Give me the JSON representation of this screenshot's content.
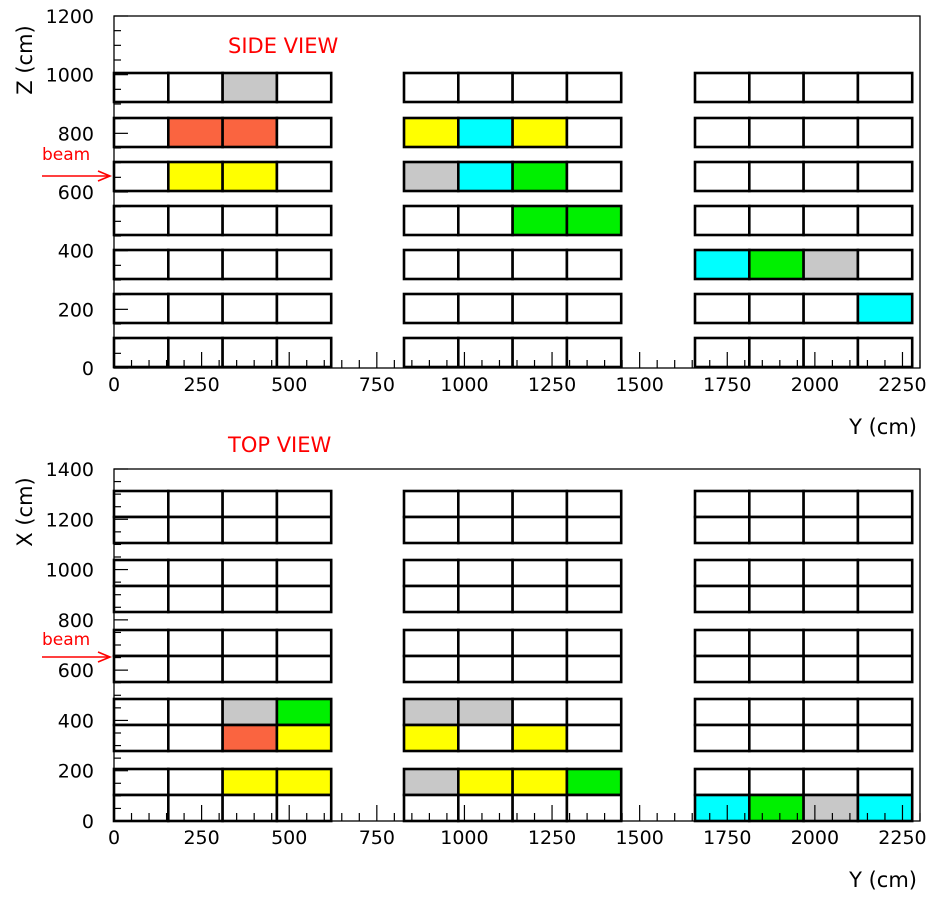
{
  "colors": {
    "empty": "#ffffff",
    "gray": "#c8c8c8",
    "orange": "#fa6440",
    "yellow": "#ffff00",
    "cyan": "#00ffff",
    "green": "#00f000",
    "annotation": "#ff0000",
    "line": "#000000"
  },
  "color_legend": {
    "G": "gray",
    "O": "orange",
    "Y": "yellow",
    "C": "cyan",
    "N": "green",
    ".": "empty"
  },
  "side_view": {
    "title": "SIDE VIEW",
    "beam_label": "beam",
    "x_axis": {
      "label": "Y (cm)",
      "range": [
        0,
        2300
      ],
      "ticks": [
        0,
        250,
        500,
        750,
        1000,
        1250,
        1500,
        1750,
        2000,
        2250
      ],
      "tick_labels": [
        "0",
        "250",
        "500",
        "750",
        "1000",
        "1250",
        "1500",
        "1750",
        "2000",
        "2250"
      ]
    },
    "y_axis": {
      "label": "Z (cm)",
      "range": [
        0,
        1200
      ],
      "ticks": [
        0,
        200,
        400,
        600,
        800,
        1000,
        1200
      ],
      "tick_labels": [
        "0",
        "200",
        "400",
        "600",
        "800",
        "1000",
        "1200"
      ]
    },
    "beam_level": 660,
    "rows_top_to_bottom": [
      [
        "..G.",
        "....",
        "...."
      ],
      [
        ".OO.",
        "YCY.",
        "...."
      ],
      [
        ".YY.",
        "GCN.",
        "...."
      ],
      [
        "....",
        "..NN",
        "...."
      ],
      [
        "....",
        "....",
        "CNG."
      ],
      [
        "....",
        "....",
        "...C"
      ],
      [
        "....",
        "....",
        "...."
      ]
    ]
  },
  "top_view": {
    "title": "TOP VIEW",
    "beam_label": "beam",
    "x_axis": {
      "label": "Y (cm)",
      "range": [
        0,
        2300
      ],
      "ticks": [
        0,
        250,
        500,
        750,
        1000,
        1250,
        1500,
        1750,
        2000,
        2250
      ],
      "tick_labels": [
        "0",
        "250",
        "500",
        "750",
        "1000",
        "1250",
        "1500",
        "1750",
        "2000",
        "2250"
      ]
    },
    "y_axis": {
      "label": "X (cm)",
      "range": [
        0,
        1400
      ],
      "ticks": [
        0,
        200,
        400,
        600,
        800,
        1000,
        1200,
        1400
      ],
      "tick_labels": [
        "0",
        "200",
        "400",
        "600",
        "800",
        "1000",
        "1200",
        "1400"
      ]
    },
    "beam_level": 660,
    "rows_top_to_bottom": [
      [
        "....",
        "....",
        "...."
      ],
      [
        "....",
        "....",
        "...."
      ],
      [
        "....",
        "....",
        "...."
      ],
      [
        "....",
        "....",
        "...."
      ],
      [
        "....",
        "....",
        "...."
      ],
      [
        "....",
        "....",
        "...."
      ],
      [
        "..GN",
        "GG..",
        "...."
      ],
      [
        "..OY",
        "Y.Y.",
        "...."
      ],
      [
        "..YY",
        "GYYN",
        "...."
      ],
      [
        "....",
        "....",
        "CNGC"
      ]
    ]
  }
}
